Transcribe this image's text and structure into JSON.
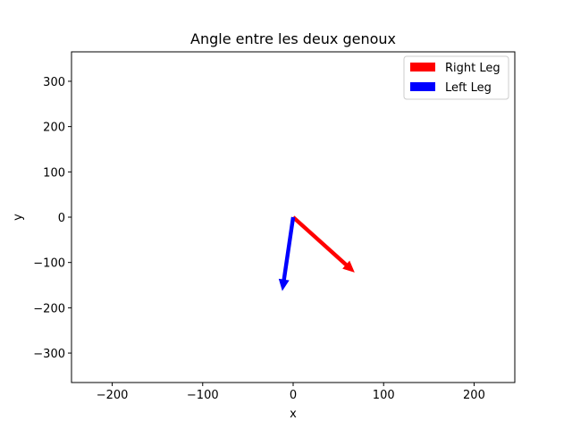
{
  "chart_data": {
    "type": "quiver",
    "title": "Angle entre les deux genoux",
    "xlabel": "x",
    "ylabel": "y",
    "xlim": [
      -245,
      245
    ],
    "ylim": [
      -365,
      365
    ],
    "xticks": [
      -200,
      -100,
      0,
      100,
      200
    ],
    "yticks": [
      -300,
      -200,
      -100,
      0,
      100,
      200,
      300
    ],
    "xtick_labels": [
      "−200",
      "−100",
      "0",
      "100",
      "200"
    ],
    "ytick_labels": [
      "−300",
      "−200",
      "−100",
      "0",
      "100",
      "200",
      "300"
    ],
    "grid": false,
    "legend_position": "top-right",
    "series": [
      {
        "name": "Right Leg",
        "color": "#ff0000",
        "origin": [
          0,
          0
        ],
        "vector": [
          68,
          -122
        ]
      },
      {
        "name": "Left Leg",
        "color": "#0000ff",
        "origin": [
          0,
          0
        ],
        "vector": [
          -12,
          -163
        ]
      }
    ]
  }
}
